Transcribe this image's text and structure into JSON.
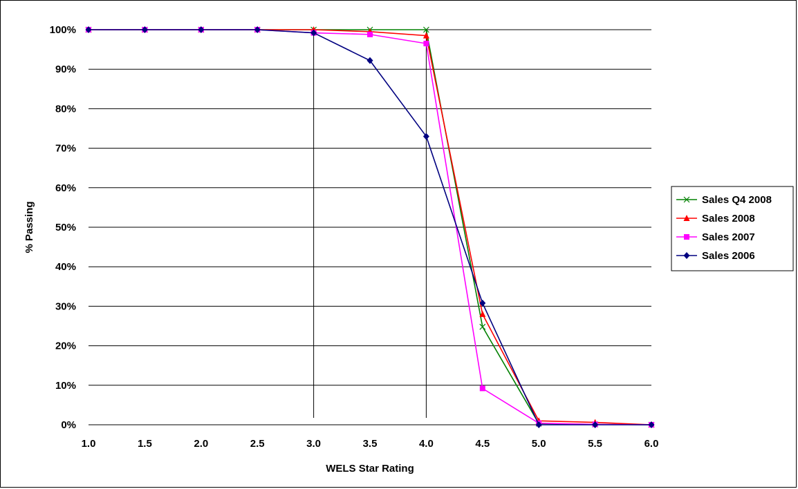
{
  "chart_data": {
    "type": "line",
    "title": "",
    "xlabel": "WELS Star Rating",
    "ylabel": "% Passing",
    "x": [
      1.0,
      1.5,
      2.0,
      2.5,
      3.0,
      3.5,
      4.0,
      4.5,
      5.0,
      5.5,
      6.0
    ],
    "x_tick_labels": [
      "1.0",
      "1.5",
      "2.0",
      "2.5",
      "3.0",
      "3.5",
      "4.0",
      "4.5",
      "5.0",
      "5.5",
      "6.0"
    ],
    "xlim": [
      1.0,
      6.0
    ],
    "ylim": [
      0,
      100
    ],
    "y_ticks": [
      0,
      10,
      20,
      30,
      40,
      50,
      60,
      70,
      80,
      90,
      100
    ],
    "y_tick_labels": [
      "0%",
      "10%",
      "20%",
      "30%",
      "40%",
      "50%",
      "60%",
      "70%",
      "80%",
      "90%",
      "100%"
    ],
    "grid": "horizontal",
    "reference_lines_x": [
      3.0,
      4.0
    ],
    "legend_position": "right",
    "series": [
      {
        "name": "Sales Q4 2008",
        "color": "#008000",
        "marker": "x",
        "values": [
          100,
          100,
          100,
          100,
          100,
          100,
          100,
          24.8,
          0.3,
          0.1,
          0
        ]
      },
      {
        "name": "Sales 2008",
        "color": "#ff0000",
        "marker": "triangle",
        "values": [
          100,
          100,
          100,
          100,
          100,
          99.5,
          98.5,
          28,
          1.0,
          0.6,
          0
        ]
      },
      {
        "name": "Sales 2007",
        "color": "#ff00ff",
        "marker": "square",
        "values": [
          100,
          100,
          100,
          100,
          99.2,
          98.8,
          96.5,
          9.2,
          0.4,
          0.1,
          0
        ]
      },
      {
        "name": "Sales 2006",
        "color": "#000080",
        "marker": "diamond",
        "values": [
          100,
          100,
          100,
          100,
          99.2,
          92.2,
          73,
          30.8,
          0,
          0,
          0
        ]
      }
    ]
  }
}
